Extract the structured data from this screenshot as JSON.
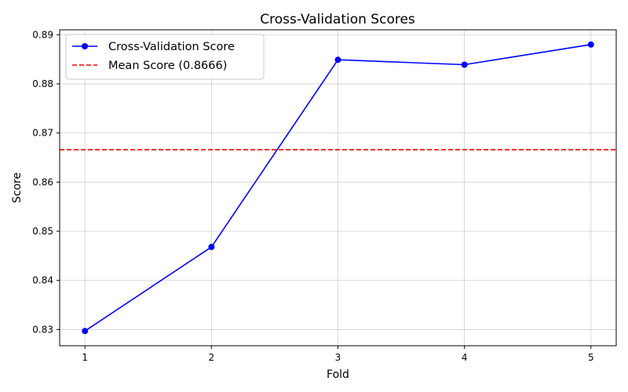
{
  "chart_data": {
    "type": "line",
    "title": "Cross-Validation Scores",
    "xlabel": "Fold",
    "ylabel": "Score",
    "x": [
      1,
      2,
      3,
      4,
      5
    ],
    "xlim": [
      0.8,
      5.2
    ],
    "ylim": [
      0.8267,
      0.891
    ],
    "yticks": [
      0.83,
      0.84,
      0.85,
      0.86,
      0.87,
      0.88,
      0.89
    ],
    "ytick_labels": [
      "0.83",
      "0.84",
      "0.85",
      "0.86",
      "0.87",
      "0.88",
      "0.89"
    ],
    "xticks": [
      1,
      2,
      3,
      4,
      5
    ],
    "xtick_labels": [
      "1",
      "2",
      "3",
      "4",
      "5"
    ],
    "grid": true,
    "legend_position": "upper-left",
    "series": [
      {
        "name": "Cross-Validation Score",
        "values": [
          0.8297,
          0.8468,
          0.8849,
          0.8839,
          0.888
        ],
        "color": "#0000ff",
        "marker": "circle",
        "line_style": "solid"
      }
    ],
    "reference_lines": [
      {
        "name": "Mean Score (0.8666)",
        "value": 0.8666,
        "color": "#ff0000",
        "line_style": "dashed"
      }
    ]
  }
}
